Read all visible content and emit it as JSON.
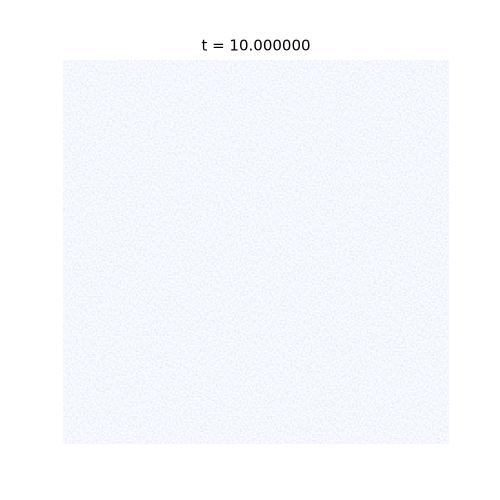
{
  "title": "t = 10.000000"
}
